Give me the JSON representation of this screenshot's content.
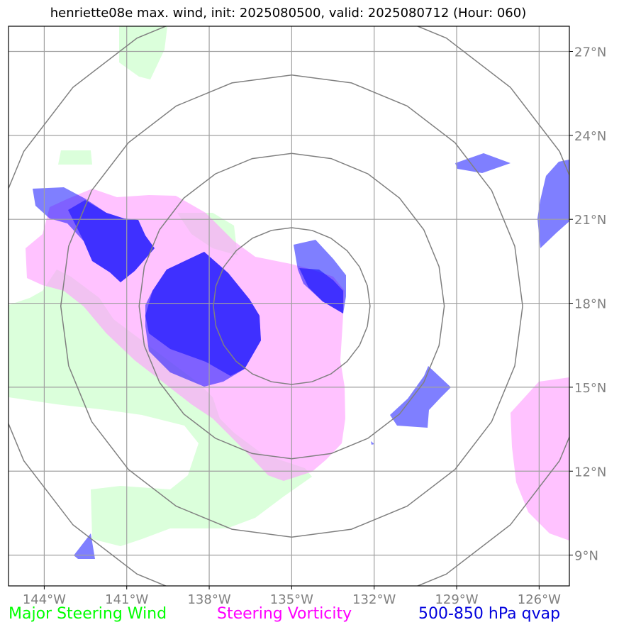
{
  "title": "henriette08e max. wind, init: 2025080500, valid: 2025080712 (Hour: 060)",
  "map": {
    "lon_range": [
      -145.3,
      -124.9
    ],
    "lat_range": [
      7.9,
      27.9
    ],
    "lon_ticks": [
      {
        "value": -144,
        "label": "144°W"
      },
      {
        "value": -141,
        "label": "141°W"
      },
      {
        "value": -138,
        "label": "138°W"
      },
      {
        "value": -135,
        "label": "135°W"
      },
      {
        "value": -132,
        "label": "132°W"
      },
      {
        "value": -129,
        "label": "129°W"
      },
      {
        "value": -126,
        "label": "126°W"
      }
    ],
    "lat_ticks": [
      {
        "value": 27,
        "label": "27°N"
      },
      {
        "value": 24,
        "label": "24°N"
      },
      {
        "value": 21,
        "label": "21°N"
      },
      {
        "value": 18,
        "label": "18°N"
      },
      {
        "value": 15,
        "label": "15°N"
      },
      {
        "value": 12,
        "label": "12°N"
      },
      {
        "value": 9,
        "label": "9°N"
      }
    ],
    "range_rings": {
      "center": {
        "lon": -135,
        "lat": 17.9
      },
      "radii_deg": [
        2.85,
        5.55,
        8.4,
        11.25
      ]
    },
    "colors": {
      "wind": "#ccffcc",
      "vorticity": "#ff99ff",
      "qvap": "#0000ff",
      "ring": "#808080",
      "grid": "#a0a0a0"
    }
  },
  "legend": {
    "wind": "Major Steering Wind",
    "vorticity": "Steering Vorticity",
    "qvap": "500-850 hPa qvap"
  }
}
